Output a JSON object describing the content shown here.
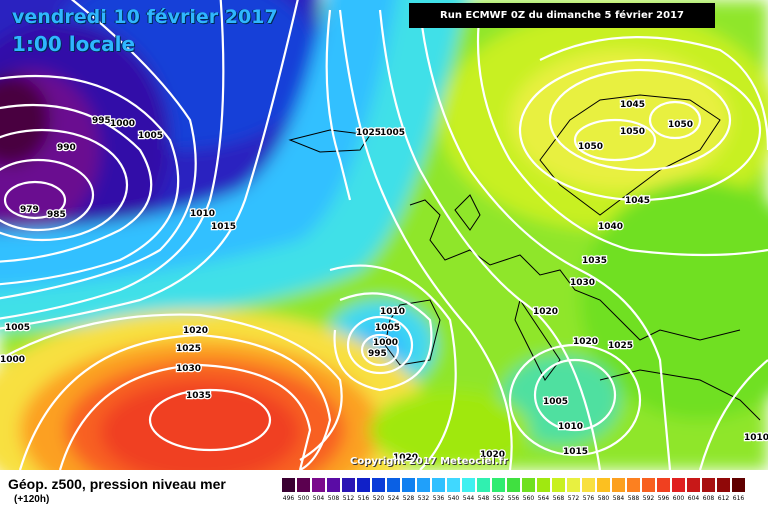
{
  "header": {
    "date": "vendredi 10 février 2017",
    "time": "1:00 locale",
    "run": "Run ECMWF 0Z du dimanche 5 février 2017"
  },
  "copyright": "Copyright 2017 Meteociel.fr",
  "footer": {
    "title": "Géop. z500, pression niveau mer",
    "subtitle": "(+120h)"
  },
  "scale": {
    "values": [
      "496",
      "500",
      "504",
      "508",
      "512",
      "516",
      "520",
      "524",
      "528",
      "532",
      "536",
      "540",
      "544",
      "548",
      "552",
      "556",
      "560",
      "564",
      "568",
      "572",
      "576",
      "580",
      "584",
      "588",
      "592",
      "596",
      "600",
      "604",
      "608",
      "612",
      "616"
    ],
    "colors": [
      "#3a0032",
      "#5b004f",
      "#7a0a8c",
      "#5a0ca5",
      "#2a16b4",
      "#1020c8",
      "#0a3cd8",
      "#0a60e4",
      "#1080f0",
      "#20a0fa",
      "#30c0ff",
      "#40d8ff",
      "#40f0f0",
      "#30f0b0",
      "#30ec70",
      "#40e040",
      "#70e020",
      "#a0e810",
      "#c8f020",
      "#e8f040",
      "#f8e040",
      "#fcc020",
      "#fca020",
      "#fc8020",
      "#f86020",
      "#f04020",
      "#e02020",
      "#c81818",
      "#a81010",
      "#900808",
      "#600000"
    ]
  },
  "isobars": [
    "990",
    "995",
    "1000",
    "1005",
    "979",
    "985",
    "1005",
    "1010",
    "1015",
    "1000",
    "1005",
    "1020",
    "1025",
    "1030",
    "1035",
    "1025",
    "1020",
    "1010",
    "1005",
    "1000",
    "995",
    "1045",
    "1050",
    "1050",
    "1050",
    "1045",
    "1040",
    "1035",
    "1030",
    "1020",
    "1020",
    "1025",
    "1005",
    "1010",
    "1015",
    "1020",
    "1010"
  ],
  "colors": {
    "accent_title": "#2fb6ff"
  }
}
